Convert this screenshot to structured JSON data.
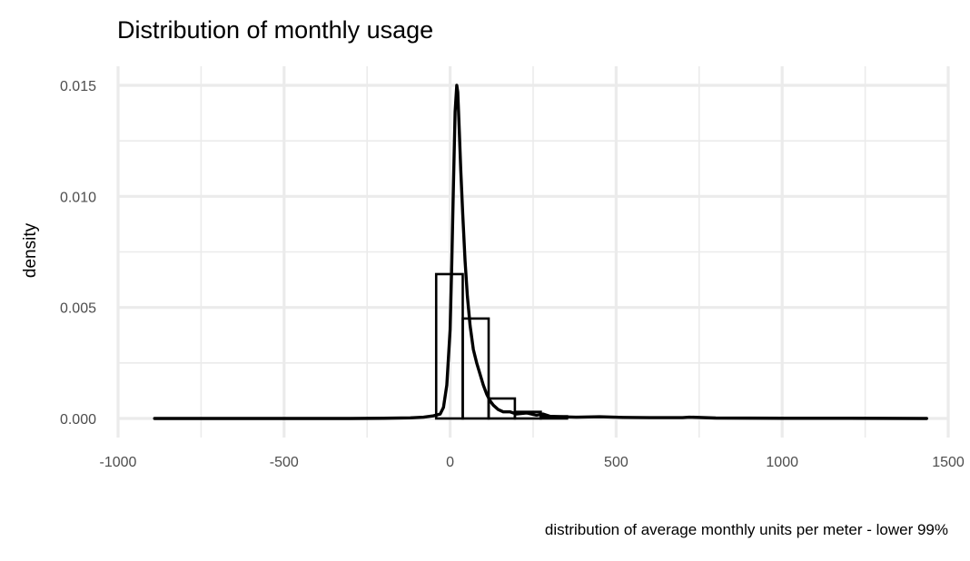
{
  "chart_data": {
    "type": "histogram+density",
    "title": "Distribution of monthly usage",
    "xlabel": "distribution of average monthly units per meter - lower 99%",
    "ylabel": "density",
    "xlim": [
      -1000,
      1500
    ],
    "ylim": [
      0,
      0.015
    ],
    "x_ticks": [
      -1000,
      -500,
      0,
      500,
      1000,
      1500
    ],
    "x_tick_labels": [
      "-1000",
      "-500",
      "0",
      "500",
      "1000",
      "1500"
    ],
    "y_ticks": [
      0,
      0.005,
      0.01,
      0.015
    ],
    "y_tick_labels": [
      "0.000",
      "0.005",
      "0.010",
      "0.015"
    ],
    "grid": true,
    "histogram_bins": [
      {
        "x_start": -42,
        "x_end": 38,
        "density": 0.0065
      },
      {
        "x_start": 38,
        "x_end": 116,
        "density": 0.0045
      },
      {
        "x_start": 116,
        "x_end": 195,
        "density": 0.0009
      },
      {
        "x_start": 195,
        "x_end": 273,
        "density": 0.0003
      },
      {
        "x_start": 273,
        "x_end": 352,
        "density": 0.0001
      }
    ],
    "density_curve": {
      "x": [
        -890,
        -700,
        -500,
        -300,
        -200,
        -120,
        -80,
        -50,
        -30,
        -20,
        -10,
        0,
        5,
        10,
        15,
        20,
        23,
        27,
        32,
        38,
        45,
        52,
        60,
        70,
        80,
        90,
        100,
        110,
        120,
        130,
        145,
        160,
        180,
        200,
        230,
        260,
        280,
        300,
        330,
        380,
        450,
        520,
        600,
        700,
        720,
        800,
        1000,
        1200,
        1435
      ],
      "y": [
        0.0,
        0.0,
        0.0,
        0.0,
        1e-05,
        3e-05,
        6e-05,
        0.00012,
        0.0002,
        0.0005,
        0.0015,
        0.004,
        0.007,
        0.0105,
        0.0138,
        0.015,
        0.0147,
        0.0132,
        0.0112,
        0.0092,
        0.0071,
        0.0055,
        0.0042,
        0.0031,
        0.0025,
        0.002,
        0.0015,
        0.0011,
        0.0008,
        0.0006,
        0.0004,
        0.0003,
        0.0003,
        0.0002,
        0.00025,
        0.00015,
        0.0002,
        0.0001,
        8e-05,
        6e-05,
        8e-05,
        5e-05,
        4e-05,
        4e-05,
        6e-05,
        2e-05,
        1e-05,
        1e-05,
        0.0
      ]
    }
  }
}
